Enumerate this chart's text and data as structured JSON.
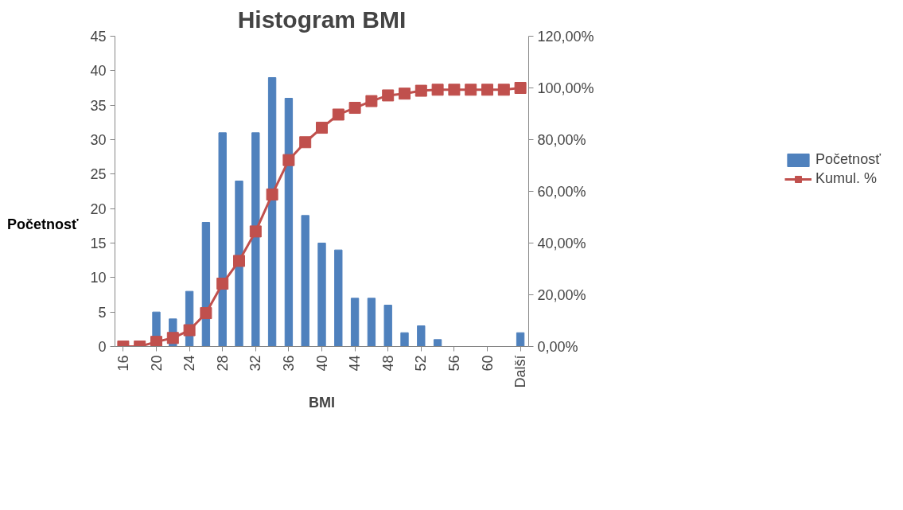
{
  "chart_data": {
    "type": "bar",
    "title": "Histogram BMI",
    "xlabel": "BMI",
    "ylabel": "Početnosť",
    "categories": [
      "16",
      null,
      "20",
      null,
      "24",
      null,
      "28",
      null,
      "32",
      null,
      "36",
      null,
      "40",
      null,
      "44",
      null,
      "48",
      null,
      "52",
      null,
      "56",
      null,
      "60",
      null,
      "Další"
    ],
    "series": [
      {
        "name": "Početnosť",
        "color": "#4f81bd",
        "values": [
          0,
          0,
          5,
          4,
          8,
          18,
          31,
          24,
          31,
          39,
          36,
          19,
          15,
          14,
          7,
          7,
          6,
          2,
          3,
          1,
          0,
          0,
          0,
          0,
          2
        ]
      },
      {
        "name": "Kumul. %",
        "type": "line",
        "axis": "y2",
        "color": "#c0504d",
        "values": [
          0,
          0,
          1.8,
          3.3,
          6.3,
          12.9,
          24.3,
          33.1,
          44.5,
          58.8,
          72.1,
          79,
          84.6,
          89.7,
          92.3,
          94.9,
          97.1,
          97.8,
          98.9,
          99.3,
          99.3,
          99.3,
          99.3,
          99.3,
          100
        ]
      }
    ],
    "ylim": [
      0,
      45
    ],
    "yticks": [
      0,
      5,
      10,
      15,
      20,
      25,
      30,
      35,
      40,
      45
    ],
    "y2lim": [
      0,
      120
    ],
    "y2ticks": [
      {
        "value": 0,
        "label": "0,00%"
      },
      {
        "value": 20,
        "label": "20,00%"
      },
      {
        "value": 40,
        "label": "40,00%"
      },
      {
        "value": 60,
        "label": "60,00%"
      },
      {
        "value": 80,
        "label": "80,00%"
      },
      {
        "value": 100,
        "label": "100,00%"
      },
      {
        "value": 120,
        "label": "120,00%"
      }
    ],
    "legend": "right",
    "marker": "square",
    "grid": false
  }
}
